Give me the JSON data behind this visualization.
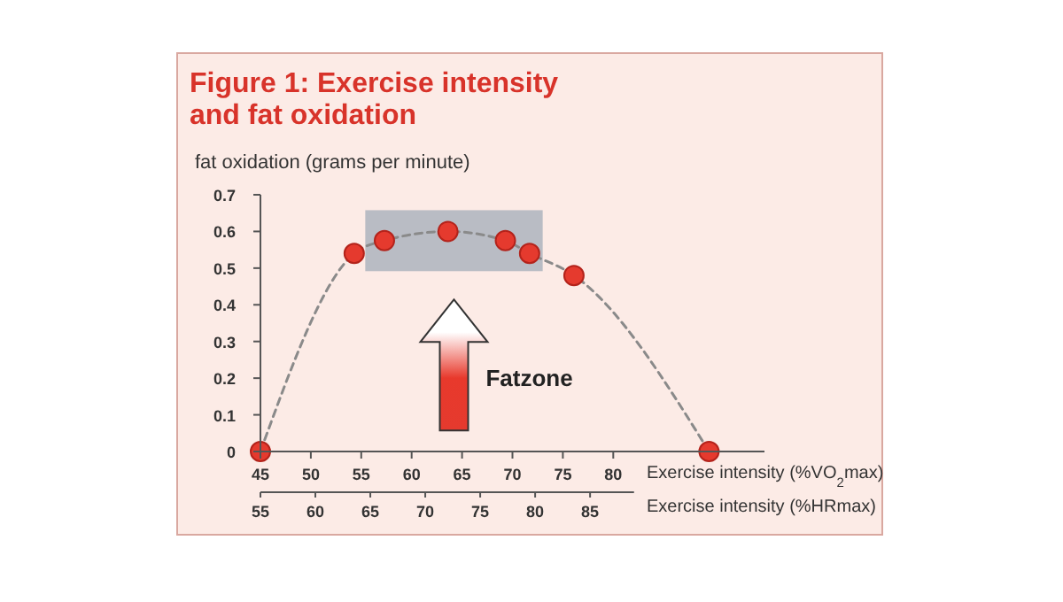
{
  "chart_data": {
    "type": "line",
    "title": "Figure 1: Exercise intensity\nand fat oxidation",
    "ylabel": "fat oxidation (grams per minute)",
    "xlabel": "Exercise intensity (%VO$_{2}$max)",
    "x2label": "Exercise intensity (%HRmax)",
    "xlim": [
      45,
      95
    ],
    "xticks": [
      45,
      50,
      55,
      60,
      65,
      70,
      75,
      80
    ],
    "x2lim": [
      55,
      89
    ],
    "x2ticks": [
      55,
      60,
      65,
      70,
      75,
      80,
      85
    ],
    "ylim": [
      0,
      0.7
    ],
    "yticks": [
      0,
      0.1,
      0.2,
      0.3,
      0.4,
      0.5,
      0.6,
      0.7
    ],
    "series": [
      {
        "color": "#8a8a8a",
        "line_style": "dashed",
        "marker": "none",
        "x": [
          45,
          54.3,
          57.3,
          63.6,
          69.3,
          71.7,
          76.1,
          89.5
        ],
        "values": [
          0,
          0.54,
          0.575,
          0.6,
          0.575,
          0.54,
          0.48,
          0
        ]
      },
      {
        "type": "scatter",
        "color": "#e53a2e",
        "marker": "circle",
        "x": [
          45,
          54.3,
          57.3,
          63.6,
          69.3,
          71.7,
          76.1,
          89.5
        ],
        "values": [
          0,
          0.54,
          0.575,
          0.6,
          0.575,
          0.54,
          0.48,
          0
        ]
      }
    ],
    "bands": [
      {
        "axis": "x",
        "from": 55.4,
        "to": 73,
        "color": "#b9bcc4"
      }
    ],
    "annotations": [
      "Fatzone"
    ],
    "grid": false
  }
}
